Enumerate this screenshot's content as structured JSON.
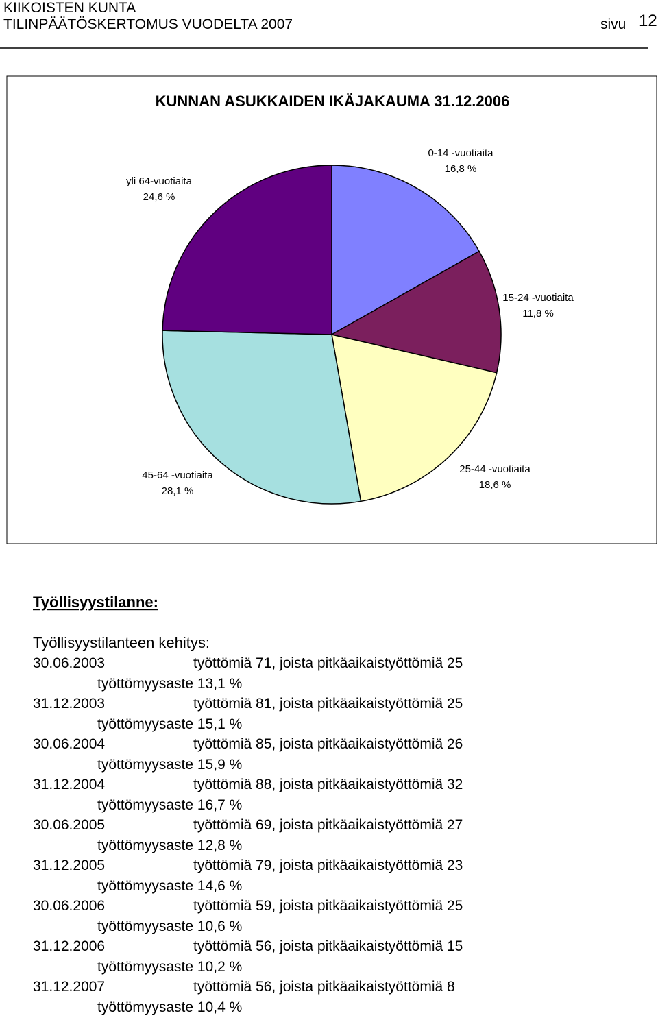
{
  "header": {
    "org": "KIIKOISTEN KUNTA",
    "doc": "TILINPÄÄTÖSKERTOMUS VUODELTA 2007",
    "page_word": "sivu",
    "page_number": "12"
  },
  "chart_data": {
    "type": "pie",
    "title": "KUNNAN ASUKKAIDEN IKÄJAKAUMA 31.12.2006",
    "categories": [
      "0-14 -vuotiaita",
      "15-24 -vuotiaita",
      "25-44 -vuotiaita",
      "45-64 -vuotiaita",
      "yli 64-vuotiaita"
    ],
    "values": [
      16.8,
      11.8,
      18.6,
      28.1,
      24.6
    ],
    "value_labels": [
      "16,8 %",
      "11,8 %",
      "18,6 %",
      "28,1 %",
      "24,6 %"
    ],
    "colors": [
      "#8080ff",
      "#7b1f5d",
      "#ffffc0",
      "#a6e0e0",
      "#600080"
    ]
  },
  "section": {
    "heading": "Työllisyystilanne:",
    "subheading": "Työllisyystilanteen kehitys:",
    "entries": [
      {
        "date": "30.06.2003",
        "text": "työttömiä 71, joista pitkäaikaistyöttömiä 25",
        "rate": "työttömyysaste  13,1 %"
      },
      {
        "date": "31.12.2003",
        "text": "työttömiä 81, joista pitkäaikaistyöttömiä 25",
        "rate": "työttömyysaste 15,1 %"
      },
      {
        "date": "30.06.2004",
        "text": "työttömiä 85, joista pitkäaikaistyöttömiä 26",
        "rate": "työttömyysaste  15,9 %"
      },
      {
        "date": "31.12.2004",
        "text": "työttömiä 88, joista pitkäaikaistyöttömiä 32",
        "rate": "työttömyysaste 16,7 %"
      },
      {
        "date": "30.06.2005",
        "text": "työttömiä 69, joista pitkäaikaistyöttömiä 27",
        "rate": "työttömyysaste 12,8 %"
      },
      {
        "date": "31.12.2005",
        "text": "työttömiä 79, joista pitkäaikaistyöttömiä 23",
        "rate": "työttömyysaste 14,6 %"
      },
      {
        "date": "30.06.2006",
        "text": "työttömiä 59, joista pitkäaikaistyöttömiä 25",
        "rate": "työttömyysaste 10,6 %"
      },
      {
        "date": "31.12.2006",
        "text": "työttömiä 56, joista pitkäaikaistyöttömiä 15",
        "rate": "työttömyysaste 10,2 %"
      },
      {
        "date": "31.12.2007",
        "text": "työttömiä 56, joista pitkäaikaistyöttömiä 8",
        "rate": "työttömyysaste 10,4 %"
      }
    ]
  }
}
